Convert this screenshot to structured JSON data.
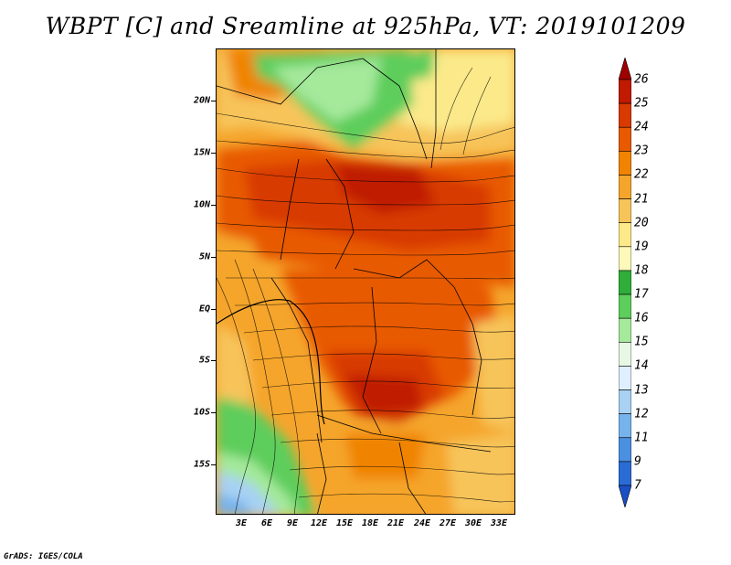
{
  "title": "WBPT [C] and Sreamline at 925hPa, VT: 2019101209",
  "credit": "GrADS: IGES/COLA",
  "lat_labels": [
    "20N",
    "15N",
    "10N",
    "5N",
    "EQ",
    "5S",
    "10S",
    "15S"
  ],
  "lon_labels": [
    "3E",
    "6E",
    "9E",
    "12E",
    "15E",
    "18E",
    "21E",
    "24E",
    "27E",
    "30E",
    "33E"
  ],
  "colorbar": {
    "labels": [
      "26",
      "25",
      "24",
      "23",
      "22",
      "21",
      "20",
      "19",
      "18",
      "17",
      "16",
      "15",
      "14",
      "13",
      "12",
      "11",
      "9",
      "7"
    ],
    "colors": [
      "#a00000",
      "#c01a00",
      "#d83a00",
      "#e85a00",
      "#f08400",
      "#f5a52c",
      "#f7c45a",
      "#fbe98a",
      "#fdf9bb",
      "#2fae3a",
      "#5dcd5b",
      "#a5e99b",
      "#e8f8e4",
      "#dfefff",
      "#a8d1f4",
      "#76b3ec",
      "#4b90e0",
      "#2a6cd4",
      "#1a50c6"
    ]
  }
}
